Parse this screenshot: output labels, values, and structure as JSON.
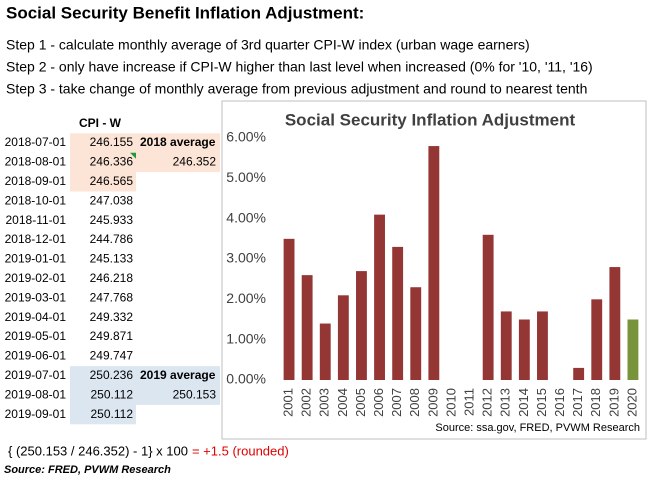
{
  "title": "Social Security Benefit Inflation Adjustment:",
  "steps": [
    "Step 1 - calculate monthly average of 3rd quarter CPI-W index (urban wage earners)",
    "Step 2 - only have increase if CPI-W higher than last level when increased (0% for '10, '11, '16)",
    "Step 3 - take change of monthly average from previous adjustment and round to nearest tenth"
  ],
  "table": {
    "header": "CPI - W",
    "rows": [
      [
        "2018-07-01",
        "246.155"
      ],
      [
        "2018-08-01",
        "246.336"
      ],
      [
        "2018-09-01",
        "246.565"
      ],
      [
        "2018-10-01",
        "247.038"
      ],
      [
        "2018-11-01",
        "245.933"
      ],
      [
        "2018-12-01",
        "244.786"
      ],
      [
        "2019-01-01",
        "245.133"
      ],
      [
        "2019-02-01",
        "246.218"
      ],
      [
        "2019-03-01",
        "247.768"
      ],
      [
        "2019-04-01",
        "249.332"
      ],
      [
        "2019-05-01",
        "249.871"
      ],
      [
        "2019-06-01",
        "249.747"
      ],
      [
        "2019-07-01",
        "250.236"
      ],
      [
        "2019-08-01",
        "250.112"
      ],
      [
        "2019-09-01",
        "250.112"
      ]
    ],
    "averages": [
      {
        "label": "2018 average",
        "value": "246.352"
      },
      {
        "label": "2019 average",
        "value": "250.153"
      }
    ]
  },
  "formula": "{ (250.153 / 246.352) - 1} x 100",
  "result": "= +1.5 (rounded)",
  "source": "Source:  FRED, PVWM Research",
  "chart_data": {
    "type": "bar",
    "title": "Social Security Inflation Adjustment",
    "categories": [
      "2001",
      "2002",
      "2003",
      "2004",
      "2005",
      "2006",
      "2007",
      "2008",
      "2009",
      "2010",
      "2011",
      "2012",
      "2013",
      "2014",
      "2015",
      "2016",
      "2017",
      "2018",
      "2019",
      "2020"
    ],
    "values": [
      3.5,
      2.6,
      1.4,
      2.1,
      2.7,
      4.1,
      3.3,
      2.3,
      5.8,
      0,
      0,
      3.6,
      1.7,
      1.5,
      1.7,
      0,
      0.3,
      2.0,
      2.8,
      1.5
    ],
    "colors": [
      "#943634",
      "#943634",
      "#943634",
      "#943634",
      "#943634",
      "#943634",
      "#943634",
      "#943634",
      "#943634",
      "#943634",
      "#943634",
      "#943634",
      "#943634",
      "#943634",
      "#943634",
      "#943634",
      "#943634",
      "#943634",
      "#943634",
      "#77933c"
    ],
    "ylim": [
      0,
      6
    ],
    "yticks": [
      {
        "value": 0,
        "label": "0.00%"
      },
      {
        "value": 1,
        "label": "1.00%"
      },
      {
        "value": 2,
        "label": "2.00%"
      },
      {
        "value": 3,
        "label": "3.00%"
      },
      {
        "value": 4,
        "label": "4.00%"
      },
      {
        "value": 5,
        "label": "5.00%"
      },
      {
        "value": 6,
        "label": "6.00%"
      }
    ],
    "source": "Source:  ssa.gov, FRED, PVWM Research"
  }
}
